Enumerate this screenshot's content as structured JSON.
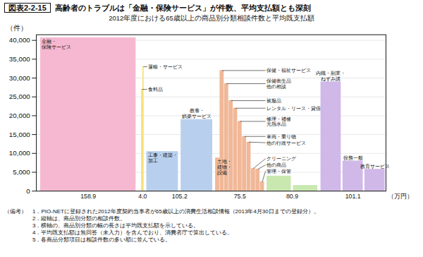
{
  "chart_data": {
    "type": "bar",
    "figure_label": "図表2-2-15",
    "title": "高齢者のトラブルは「金融・保険サービス」が件数、平均支払額とも深刻",
    "subtitle": "2012年度における65歳以上の商品別分類相談件数と平均既支払額",
    "ylabel": "（件）",
    "xlabel": "（万円）",
    "ylim": [
      0,
      41500
    ],
    "yticks": [
      0,
      {
        "value": 5000,
        "label": "5,000"
      },
      {
        "value": 10000,
        "label": "10,000"
      },
      {
        "value": 15000,
        "label": "15,000"
      },
      {
        "value": 20000,
        "label": "20,000"
      },
      {
        "value": 25000,
        "label": "25,000"
      },
      {
        "value": 30000,
        "label": "30,000"
      },
      {
        "value": 35000,
        "label": "35,000"
      },
      {
        "value": 40000,
        "label": "40,000"
      }
    ],
    "grid": true,
    "groups": [
      {
        "label": "158.9",
        "avg": 158.9,
        "color": "#f5b8d0",
        "categories": [
          "金融・\n保険サービス"
        ],
        "values": [
          40700
        ]
      },
      {
        "label": "4.0",
        "avg": 4.0,
        "color": "#f5e070",
        "categories": [
          "食料品",
          "運輸・サービス"
        ],
        "values": [
          27000,
          33000
        ]
      },
      {
        "label": "105.2",
        "avg": 105.2,
        "color": "#b8d0ee",
        "categories": [
          "工事・建築・\n加工",
          "教養・\n娯楽サービス"
        ],
        "values": [
          10500,
          19000
        ]
      },
      {
        "label": "75.5",
        "avg": 75.5,
        "color": "#f0b898",
        "categories": [
          "土地・\n建物・\n設備",
          "保健・福祉サービス",
          "保健衛生品\n他の相談",
          "被服品",
          "レンタル・リース・貸借",
          "修理・補修\n光熱水品",
          "車両・乗り物",
          "他の行政サービス",
          "クリーニング",
          "他の商品",
          "管理・保管"
        ],
        "values": [
          8800,
          32000,
          28500,
          24000,
          22000,
          18500,
          14500,
          13000,
          6000,
          5800,
          2500
        ]
      },
      {
        "label": "80.9",
        "avg": 80.9,
        "color": "#c8e8b0",
        "categories": [
          null,
          null
        ],
        "values": [
          4000,
          1500
        ]
      },
      {
        "label": "101.1",
        "avg": 101.1,
        "color": "#d0b8e8",
        "categories": [
          "内職・副業・\nねずみ講",
          "役務一般",
          "教育サービス"
        ],
        "values": [
          29000,
          8000,
          5800
        ]
      }
    ],
    "notes": [
      "（備考）　1．PIO-NETに登録された2012年度契約当事者が65歳以上の消費生活相談情報（2013年4月30日までの登録分）。",
      "　　　　　2．縦軸は、商品別分類の相談件数。",
      "　　　　　3．横軸の、商品別分類の幅の長さは平均既支払額を示している。",
      "　　　　　4．平均既支払額は無回答（未入力）を含んでおり、消費者庁で算出している。",
      "　　　　　5．各商品分類項目は相談件数の多い順に並んでいる。"
    ]
  }
}
